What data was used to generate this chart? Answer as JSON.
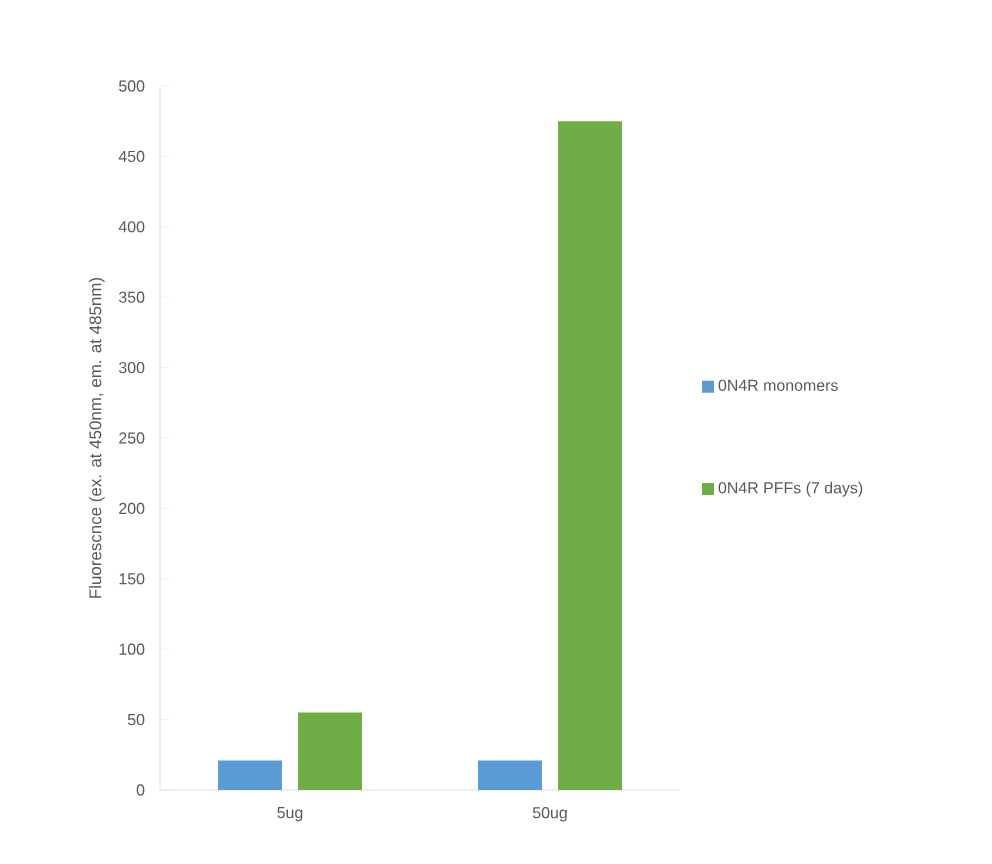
{
  "chart_data": {
    "type": "bar",
    "ylabel": "Fluorescnce (ex. at 450nm, em. at 485nm)",
    "categories": [
      "5ug",
      "50ug"
    ],
    "series": [
      {
        "name": "0N4R monomers",
        "color": "#5b9bd5",
        "values": [
          21,
          21
        ]
      },
      {
        "name": "0N4R PFFs (7 days)",
        "color": "#70ad47",
        "values": [
          55,
          475
        ]
      }
    ],
    "ylim": [
      0,
      500
    ],
    "yticks": [
      0,
      50,
      100,
      150,
      200,
      250,
      300,
      350,
      400,
      450,
      500
    ],
    "grid": false,
    "legend": "right"
  }
}
